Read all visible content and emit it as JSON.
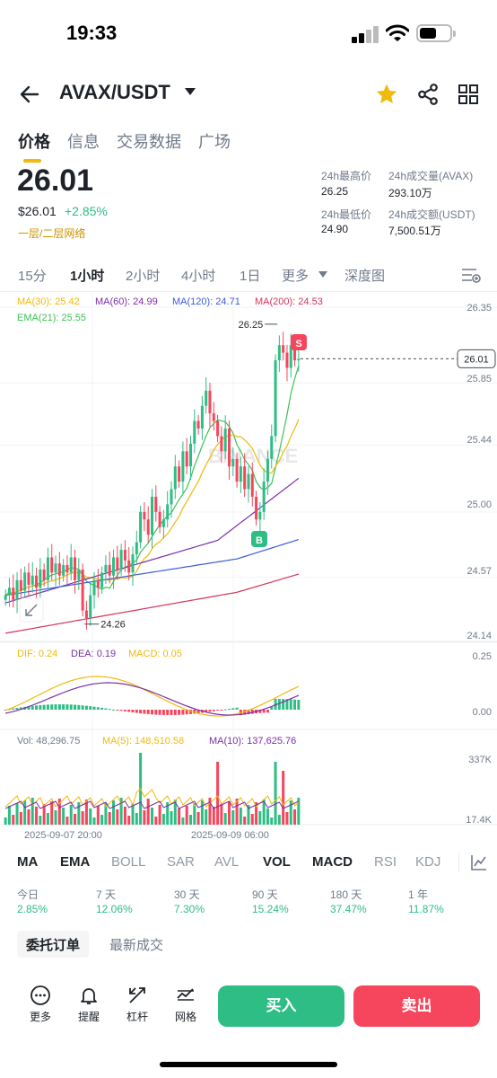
{
  "status": {
    "time": "19:33"
  },
  "header": {
    "pair": "AVAX/USDT"
  },
  "tabs": [
    "价格",
    "信息",
    "交易数据",
    "广场"
  ],
  "ticker": {
    "price": "26.01",
    "price_usd": "$26.01",
    "change": "+2.85%",
    "network_link": "一层/二层网络",
    "high_label": "24h最高价",
    "high": "26.25",
    "low_label": "24h最低价",
    "low": "24.90",
    "vol_base_label": "24h成交量(AVAX)",
    "vol_base": "293.10万",
    "vol_quote_label": "24h成交额(USDT)",
    "vol_quote": "7,500.51万"
  },
  "intervals": [
    "15分",
    "1小时",
    "2小时",
    "4小时",
    "1日",
    "更多",
    "深度图"
  ],
  "active_interval": "1小时",
  "chart_data": {
    "type": "candlestick",
    "ma_labels": {
      "ma30": "MA(30): 25.42",
      "ma60": "MA(60): 24.99",
      "ma120": "MA(120): 24.71",
      "ma200": "MA(200): 24.53",
      "ema21": "EMA(21): 25.55"
    },
    "price_axis": [
      "26.35",
      "25.85",
      "25.44",
      "25.00",
      "24.57",
      "24.14"
    ],
    "current_price_tag": "26.01",
    "high_marker": "26.25",
    "low_marker": "24.26",
    "sell_marker": "S",
    "buy_marker": "B",
    "watermark": "BINANCE",
    "macd": {
      "dif": "DIF: 0.24",
      "dea": "DEA: 0.19",
      "macd": "MACD: 0.05",
      "axis": [
        "0.25",
        "0.00"
      ]
    },
    "volume": {
      "vol": "Vol: 48,296.75",
      "ma5": "MA(5): 148,510.58",
      "ma10": "MA(10): 137,625.76",
      "axis": [
        "337K",
        "17.4K"
      ]
    },
    "time_axis": [
      "2025-09-07 20:00",
      "2025-09-09 06:00"
    ],
    "colors": {
      "up": "#2ebd85",
      "down": "#f6465d",
      "ma30": "#f0b90b",
      "ma60": "#7b2fa8",
      "ma120": "#3b5bdb",
      "ma200": "#d6335a",
      "ema21": "#40c057"
    }
  },
  "indicators": [
    "MA",
    "EMA",
    "BOLL",
    "SAR",
    "AVL",
    "VOL",
    "MACD",
    "RSI",
    "KDJ"
  ],
  "active_indicators": [
    "MA",
    "EMA",
    "VOL",
    "MACD"
  ],
  "performance": [
    {
      "label": "今日",
      "value": "2.85%"
    },
    {
      "label": "7 天",
      "value": "12.06%"
    },
    {
      "label": "30 天",
      "value": "7.30%"
    },
    {
      "label": "90 天",
      "value": "15.24%"
    },
    {
      "label": "180 天",
      "value": "37.47%"
    },
    {
      "label": "1 年",
      "value": "11.87%"
    }
  ],
  "order_tabs": [
    "委托订单",
    "最新成交"
  ],
  "actions": [
    "更多",
    "提醒",
    "杠杆",
    "网格"
  ],
  "buy_label": "买入",
  "sell_label": "卖出"
}
